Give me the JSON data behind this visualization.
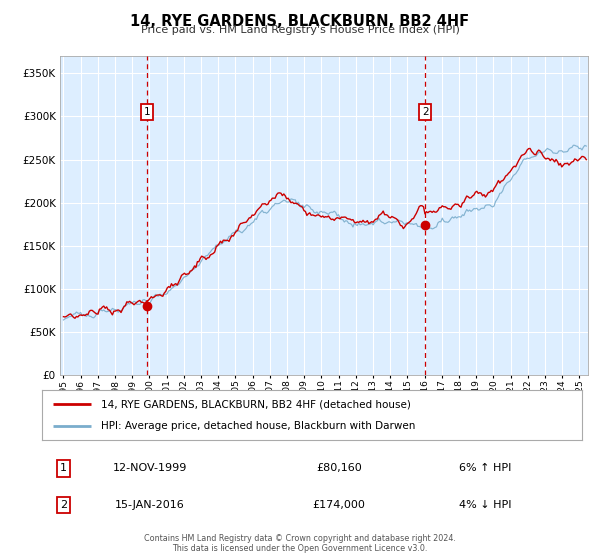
{
  "title": "14, RYE GARDENS, BLACKBURN, BB2 4HF",
  "subtitle": "Price paid vs. HM Land Registry's House Price Index (HPI)",
  "bg_color": "#ddeeff",
  "ylim": [
    0,
    370000
  ],
  "yticks": [
    0,
    50000,
    100000,
    150000,
    200000,
    250000,
    300000,
    350000
  ],
  "sale1_x": 1999.87,
  "sale1_price": 80160,
  "sale1_label": "1",
  "sale1_date_str": "12-NOV-1999",
  "sale1_price_str": "£80,160",
  "sale1_hpi_str": "6% ↑ HPI",
  "sale2_x": 2016.04,
  "sale2_price": 174000,
  "sale2_label": "2",
  "sale2_date_str": "15-JAN-2016",
  "sale2_price_str": "£174,000",
  "sale2_hpi_str": "4% ↓ HPI",
  "red_color": "#cc0000",
  "blue_color": "#7aadcc",
  "legend_label_red": "14, RYE GARDENS, BLACKBURN, BB2 4HF (detached house)",
  "legend_label_blue": "HPI: Average price, detached house, Blackburn with Darwen",
  "footer1": "Contains HM Land Registry data © Crown copyright and database right 2024.",
  "footer2": "This data is licensed under the Open Government Licence v3.0.",
  "x_start": 1994.8,
  "x_end": 2025.5,
  "xtick_years": [
    1995,
    1996,
    1997,
    1998,
    1999,
    2000,
    2001,
    2002,
    2003,
    2004,
    2005,
    2006,
    2007,
    2008,
    2009,
    2010,
    2011,
    2012,
    2013,
    2014,
    2015,
    2016,
    2017,
    2018,
    2019,
    2020,
    2021,
    2022,
    2023,
    2024,
    2025
  ]
}
